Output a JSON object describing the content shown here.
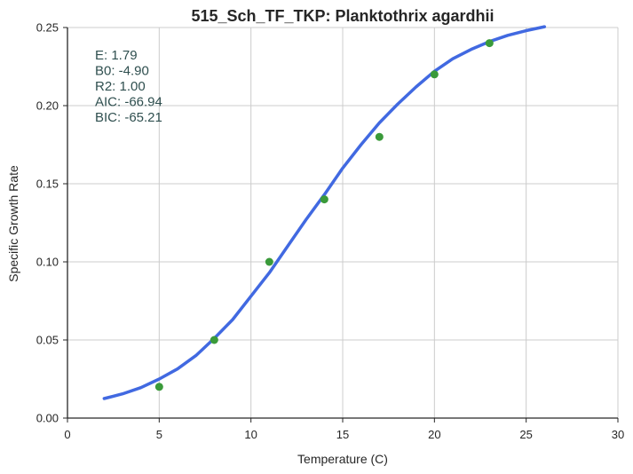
{
  "chart_data": {
    "type": "scatter",
    "title": "515_Sch_TF_TKP: Planktothrix agardhii",
    "xlabel": "Temperature (C)",
    "ylabel": "Specific Growth Rate",
    "xlim": [
      0,
      30
    ],
    "ylim": [
      0,
      0.25
    ],
    "xticks": [
      0,
      5,
      10,
      15,
      20,
      25,
      30
    ],
    "yticks": [
      0.0,
      0.05,
      0.1,
      0.15,
      0.2,
      0.25
    ],
    "xtick_labels": [
      "0",
      "5",
      "10",
      "15",
      "20",
      "25",
      "30"
    ],
    "ytick_labels": [
      "0.00",
      "0.05",
      "0.10",
      "0.15",
      "0.20",
      "0.25"
    ],
    "grid": true,
    "series": [
      {
        "kind": "scatter",
        "color": "#3a9a3a",
        "x": [
          5,
          8,
          11,
          14,
          17,
          20,
          23
        ],
        "y": [
          0.02,
          0.05,
          0.1,
          0.14,
          0.18,
          0.22,
          0.24
        ]
      },
      {
        "kind": "line",
        "color": "#4169e1",
        "x": [
          2,
          3,
          4,
          5,
          6,
          7,
          8,
          9,
          10,
          11,
          12,
          13,
          14,
          15,
          16,
          17,
          18,
          19,
          20,
          21,
          22,
          23,
          24,
          25,
          26
        ],
        "y": [
          0.0125,
          0.0155,
          0.0195,
          0.025,
          0.0315,
          0.04,
          0.051,
          0.063,
          0.078,
          0.093,
          0.11,
          0.127,
          0.143,
          0.16,
          0.175,
          0.189,
          0.201,
          0.212,
          0.222,
          0.23,
          0.236,
          0.241,
          0.245,
          0.248,
          0.2505
        ]
      }
    ],
    "annotations": [
      "E:  1.79",
      "B0:  -4.90",
      "R2:  1.00",
      "AIC: -66.94",
      "BIC: -65.21"
    ]
  }
}
